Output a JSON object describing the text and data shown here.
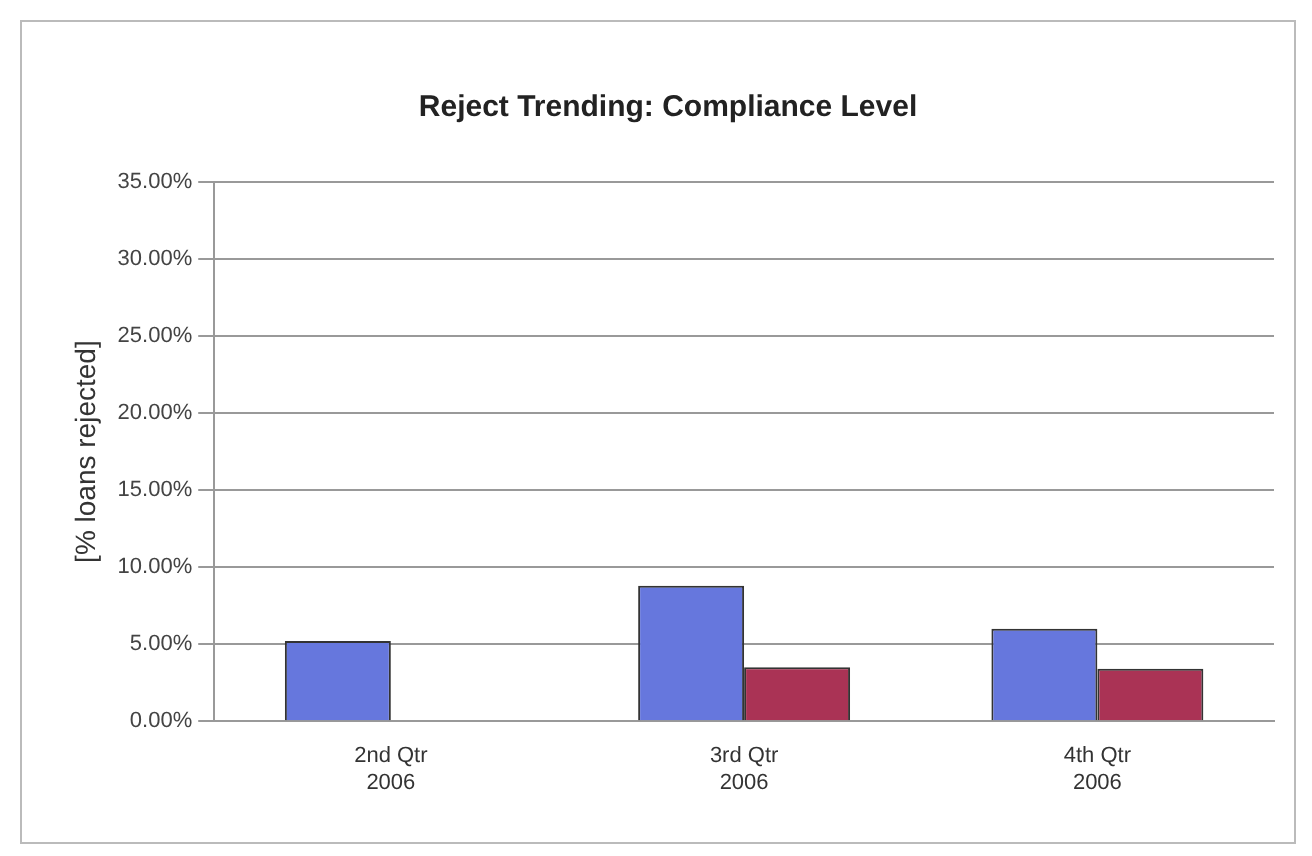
{
  "chart_data": {
    "type": "bar",
    "title": "Reject Trending: Compliance Level",
    "ylabel": "[% loans rejected]",
    "categories": [
      "2nd Qtr\n2006",
      "3rd Qtr\n2006",
      "4th Qtr\n2006"
    ],
    "series": [
      {
        "color": "#6677dd",
        "values": [
          5.2,
          8.8,
          6.0
        ]
      },
      {
        "color": "#aa3355",
        "values": [
          null,
          3.5,
          3.4
        ]
      }
    ],
    "ylim": [
      0,
      35
    ],
    "yticks": [
      {
        "value": 0,
        "label": "0.00%"
      },
      {
        "value": 5,
        "label": "5.00%"
      },
      {
        "value": 10,
        "label": "10.00%"
      },
      {
        "value": 15,
        "label": "15.00%"
      },
      {
        "value": 20,
        "label": "20.00%"
      },
      {
        "value": 25,
        "label": "25.00%"
      },
      {
        "value": 30,
        "label": "30.00%"
      },
      {
        "value": 35,
        "label": "35.00%"
      }
    ],
    "grid": "y",
    "legend": false
  }
}
